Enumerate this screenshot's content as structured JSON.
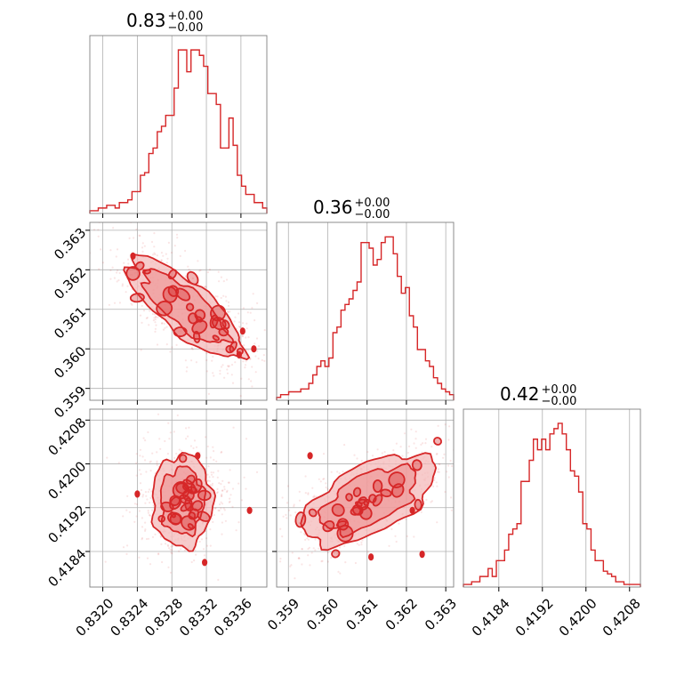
{
  "chart_data": {
    "type": "corner",
    "colors": {
      "main": "#d62728",
      "fill_light": "#f4b9b9",
      "fill_mid": "#ec8a8a",
      "grid": "#b0b0b0",
      "frame": "#808080"
    },
    "parameters": [
      {
        "title_value": "0.83",
        "title_plus": "+0.00",
        "title_minus": "−0.00",
        "range": [
          0.83185,
          0.8339
        ],
        "ticks": [
          0.832,
          0.8324,
          0.8328,
          0.8332,
          0.8336
        ],
        "tick_labels": [
          "0.8320",
          "0.8324",
          "0.8328",
          "0.8332",
          "0.8336"
        ],
        "hist_counts": [
          1,
          1,
          2,
          2,
          3,
          3,
          2,
          4,
          4,
          5,
          8,
          8,
          14,
          15,
          22,
          24,
          30,
          32,
          36,
          36,
          46,
          60,
          60,
          52,
          60,
          60,
          58,
          54,
          44,
          44,
          40,
          24,
          24,
          35,
          25,
          14,
          10,
          7,
          7,
          4,
          4,
          2
        ],
        "hist_max": 62
      },
      {
        "title_value": "0.36",
        "title_plus": "+0.00",
        "title_minus": "−0.00",
        "range": [
          0.3587,
          0.3632
        ],
        "ticks": [
          0.359,
          0.36,
          0.361,
          0.362,
          0.363
        ],
        "tick_labels": [
          "0.359",
          "0.360",
          "0.361",
          "0.362",
          "0.363"
        ],
        "hist_counts": [
          1,
          2,
          2,
          3,
          3,
          3,
          4,
          4,
          6,
          9,
          12,
          14,
          12,
          15,
          24,
          26,
          32,
          34,
          36,
          39,
          42,
          56,
          56,
          54,
          48,
          50,
          56,
          58,
          58,
          52,
          44,
          38,
          40,
          30,
          26,
          18,
          18,
          14,
          12,
          8,
          6,
          4,
          3,
          2
        ],
        "hist_max": 60
      },
      {
        "title_value": "0.42",
        "title_plus": "+0.00",
        "title_minus": "−0.00",
        "range": [
          0.41775,
          0.421
        ],
        "ticks": [
          0.4184,
          0.4192,
          0.42,
          0.4208
        ],
        "tick_labels": [
          "0.4184",
          "0.4192",
          "0.4200",
          "0.4208"
        ],
        "hist_counts": [
          1,
          1,
          2,
          2,
          4,
          4,
          7,
          4,
          10,
          10,
          14,
          20,
          22,
          24,
          40,
          40,
          48,
          56,
          52,
          56,
          52,
          58,
          60,
          62,
          58,
          52,
          44,
          42,
          36,
          24,
          22,
          14,
          10,
          10,
          6,
          5,
          4,
          2,
          2,
          1,
          1,
          1,
          1
        ],
        "hist_max": 64
      }
    ],
    "pairs": [
      {
        "x": 0,
        "y": 1,
        "angle_deg": -50,
        "rx": 0.00036,
        "ry": 0.0017,
        "center": [
          0.83295,
          0.36105
        ],
        "outliers": [
          [
            0.83235,
            0.36235
          ],
          [
            0.83362,
            0.36045
          ],
          [
            0.83375,
            0.36
          ],
          [
            0.83358,
            0.35985
          ]
        ]
      },
      {
        "x": 0,
        "y": 2,
        "angle_deg": 0,
        "rx": 0.00035,
        "ry": 0.00085,
        "center": [
          0.83292,
          0.41932
        ],
        "outliers": [
          [
            0.8324,
            0.41945
          ],
          [
            0.8331,
            0.42015
          ],
          [
            0.8337,
            0.41915
          ],
          [
            0.83318,
            0.4182
          ]
        ]
      },
      {
        "x": 1,
        "y": 2,
        "angle_deg": -28,
        "rx": 0.00112,
        "ry": 0.00055,
        "center": [
          0.36105,
          0.41935
        ],
        "outliers": [
          [
            0.35955,
            0.42015
          ],
          [
            0.36215,
            0.41915
          ],
          [
            0.3624,
            0.41835
          ],
          [
            0.3611,
            0.4183
          ]
        ]
      }
    ]
  }
}
